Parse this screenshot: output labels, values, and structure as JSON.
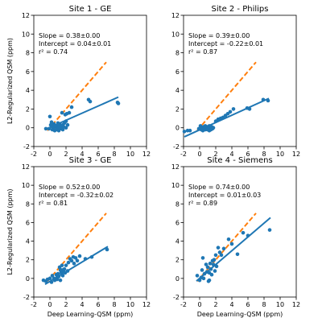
{
  "figure": {
    "xlabel": "Deep Learning-QSM (ppm)",
    "ylabel": "L2-Regularized QSM (ppm)"
  },
  "colors": {
    "points": "#1f77b4",
    "fit_line": "#1f77b4",
    "identity_line": "#ff7f0e"
  },
  "chart_data": [
    {
      "type": "scatter",
      "title": "Site 1 - GE",
      "xlabel": "",
      "ylabel": "L2-Regularized QSM (ppm)",
      "xlim": [
        -2,
        12
      ],
      "ylim": [
        -2,
        12
      ],
      "xticks": [
        -2,
        0,
        2,
        4,
        6,
        8,
        10,
        12
      ],
      "yticks": [
        -2,
        0,
        2,
        4,
        6,
        8,
        10,
        12
      ],
      "annotations": [
        "Slope = 0.38±0.00",
        "Intercept = 0.04±0.01",
        "r² = 0.74"
      ],
      "fit": {
        "slope": 0.38,
        "intercept": 0.04,
        "x_range": [
          -0.4,
          8.5
        ]
      },
      "identity": {
        "x_range": [
          -0.3,
          7
        ]
      },
      "points": [
        [
          -0.5,
          -0.1
        ],
        [
          -0.1,
          -0.1
        ],
        [
          0.1,
          0.3
        ],
        [
          0.2,
          0.6
        ],
        [
          0.3,
          -0.2
        ],
        [
          0.4,
          0.0
        ],
        [
          0.5,
          0.4
        ],
        [
          0.6,
          -0.3
        ],
        [
          0.7,
          0.1
        ],
        [
          0.8,
          -0.2
        ],
        [
          0.9,
          0.2
        ],
        [
          1.0,
          -0.1
        ],
        [
          1.0,
          0.5
        ],
        [
          1.1,
          -0.3
        ],
        [
          1.2,
          0.1
        ],
        [
          1.3,
          0.3
        ],
        [
          1.3,
          -0.1
        ],
        [
          1.4,
          0.0
        ],
        [
          1.5,
          1.6
        ],
        [
          1.5,
          0.2
        ],
        [
          1.6,
          -0.2
        ],
        [
          1.7,
          0.1
        ],
        [
          1.8,
          0.5
        ],
        [
          1.9,
          1.4
        ],
        [
          2.0,
          0.0
        ],
        [
          2.0,
          0.7
        ],
        [
          2.1,
          1.5
        ],
        [
          2.2,
          0.3
        ],
        [
          2.4,
          1.6
        ],
        [
          2.7,
          2.2
        ],
        [
          0.0,
          1.2
        ],
        [
          0.3,
          0.1
        ],
        [
          0.8,
          0.2
        ],
        [
          1.1,
          0.0
        ],
        [
          0.6,
          0.2
        ],
        [
          1.6,
          0.3
        ],
        [
          4.8,
          3.0
        ],
        [
          5.0,
          2.8
        ],
        [
          8.4,
          2.7
        ],
        [
          8.5,
          2.6
        ]
      ]
    },
    {
      "type": "scatter",
      "title": "Site 2 - Philips",
      "xlabel": "",
      "ylabel": "",
      "xlim": [
        -2,
        12
      ],
      "ylim": [
        -2,
        12
      ],
      "xticks": [
        -2,
        0,
        2,
        4,
        6,
        8,
        10,
        12
      ],
      "yticks": [
        -2,
        0,
        2,
        4,
        6,
        8,
        10,
        12
      ],
      "annotations": [
        "Slope = 0.39±0.00",
        "Intercept = -0.22±0.01",
        "r² = 0.87"
      ],
      "fit": {
        "slope": 0.39,
        "intercept": -0.22,
        "x_range": [
          -1.9,
          8.6
        ]
      },
      "identity": {
        "x_range": [
          -0.3,
          7
        ]
      },
      "points": [
        [
          -1.9,
          -0.4
        ],
        [
          -1.5,
          -0.3
        ],
        [
          -1.2,
          -0.3
        ],
        [
          -0.1,
          -0.1
        ],
        [
          0.1,
          0.2
        ],
        [
          0.3,
          0.0
        ],
        [
          0.4,
          -0.3
        ],
        [
          0.5,
          0.1
        ],
        [
          0.6,
          -0.1
        ],
        [
          0.7,
          -0.2
        ],
        [
          0.8,
          0.0
        ],
        [
          0.9,
          0.1
        ],
        [
          1.0,
          -0.2
        ],
        [
          1.1,
          -0.1
        ],
        [
          1.2,
          0.2
        ],
        [
          1.3,
          0.0
        ],
        [
          1.4,
          -0.2
        ],
        [
          1.5,
          0.1
        ],
        [
          1.6,
          -0.1
        ],
        [
          1.7,
          0.0
        ],
        [
          0.2,
          -0.2
        ],
        [
          0.7,
          0.2
        ],
        [
          1.2,
          -0.3
        ],
        [
          2.0,
          0.7
        ],
        [
          2.3,
          0.9
        ],
        [
          2.6,
          1.0
        ],
        [
          2.9,
          1.1
        ],
        [
          3.2,
          1.3
        ],
        [
          3.5,
          1.5
        ],
        [
          3.8,
          1.7
        ],
        [
          4.2,
          2.0
        ],
        [
          5.9,
          2.1
        ],
        [
          6.2,
          2.0
        ],
        [
          7.9,
          3.0
        ],
        [
          8.5,
          2.9
        ]
      ]
    },
    {
      "type": "scatter",
      "title": "Site 3 - GE",
      "xlabel": "Deep Learning-QSM (ppm)",
      "ylabel": "L2-Regularized QSM (ppm)",
      "xlim": [
        -2,
        12
      ],
      "ylim": [
        -2,
        12
      ],
      "xticks": [
        -2,
        0,
        2,
        4,
        6,
        8,
        10,
        12
      ],
      "yticks": [
        -2,
        0,
        2,
        4,
        6,
        8,
        10,
        12
      ],
      "annotations": [
        "Slope = 0.52±0.00",
        "Intercept = -0.32±0.02",
        "r² = 0.81"
      ],
      "fit": {
        "slope": 0.52,
        "intercept": -0.32,
        "x_range": [
          -0.6,
          7.2
        ]
      },
      "identity": {
        "x_range": [
          -0.3,
          7
        ]
      },
      "points": [
        [
          -0.8,
          -0.2
        ],
        [
          -0.5,
          -0.3
        ],
        [
          -0.3,
          -0.1
        ],
        [
          0.0,
          0.0
        ],
        [
          0.2,
          -0.4
        ],
        [
          0.3,
          0.3
        ],
        [
          0.5,
          0.0
        ],
        [
          0.6,
          -0.2
        ],
        [
          0.8,
          0.4
        ],
        [
          0.9,
          -0.1
        ],
        [
          1.0,
          0.5
        ],
        [
          1.1,
          0.2
        ],
        [
          1.2,
          1.2
        ],
        [
          1.3,
          0.9
        ],
        [
          1.4,
          0.6
        ],
        [
          1.5,
          1.4
        ],
        [
          1.6,
          0.3
        ],
        [
          1.7,
          0.7
        ],
        [
          1.8,
          1.0
        ],
        [
          1.9,
          0.6
        ],
        [
          2.0,
          1.4
        ],
        [
          2.2,
          0.8
        ],
        [
          2.3,
          1.7
        ],
        [
          2.5,
          2.1
        ],
        [
          2.7,
          1.9
        ],
        [
          2.9,
          2.3
        ],
        [
          3.0,
          1.6
        ],
        [
          3.2,
          2.2
        ],
        [
          3.4,
          1.9
        ],
        [
          3.7,
          2.4
        ],
        [
          1.3,
          -0.2
        ],
        [
          0.9,
          0.1
        ],
        [
          1.5,
          0.9
        ],
        [
          4.4,
          2.1
        ],
        [
          5.2,
          2.3
        ],
        [
          7.1,
          3.1
        ]
      ]
    },
    {
      "type": "scatter",
      "title": "Site 4 - Siemens",
      "xlabel": "Deep Learning-QSM (ppm)",
      "ylabel": "",
      "xlim": [
        -2,
        12
      ],
      "ylim": [
        -2,
        12
      ],
      "xticks": [
        -2,
        0,
        2,
        4,
        6,
        8,
        10,
        12
      ],
      "yticks": [
        -2,
        0,
        2,
        4,
        6,
        8,
        10,
        12
      ],
      "annotations": [
        "Slope = 0.74±0.00",
        "Intercept = 0.01±0.03",
        "r² = 0.89"
      ],
      "fit": {
        "slope": 0.74,
        "intercept": 0.01,
        "x_range": [
          -0.4,
          8.8
        ]
      },
      "identity": {
        "x_range": [
          -0.3,
          7
        ]
      },
      "points": [
        [
          -0.3,
          0.3
        ],
        [
          0.0,
          -0.2
        ],
        [
          0.2,
          0.1
        ],
        [
          0.3,
          0.9
        ],
        [
          0.4,
          2.2
        ],
        [
          0.5,
          0.0
        ],
        [
          0.6,
          0.5
        ],
        [
          0.8,
          1.5
        ],
        [
          0.9,
          0.7
        ],
        [
          1.0,
          1.2
        ],
        [
          1.1,
          -0.3
        ],
        [
          1.2,
          0.6
        ],
        [
          1.3,
          1.6
        ],
        [
          1.4,
          1.0
        ],
        [
          1.5,
          0.4
        ],
        [
          1.6,
          1.9
        ],
        [
          1.7,
          1.5
        ],
        [
          1.8,
          2.0
        ],
        [
          2.0,
          2.5
        ],
        [
          2.1,
          1.3
        ],
        [
          2.3,
          3.3
        ],
        [
          2.5,
          2.8
        ],
        [
          2.7,
          2.5
        ],
        [
          3.0,
          3.2
        ],
        [
          3.6,
          4.2
        ],
        [
          4.0,
          3.7
        ],
        [
          4.7,
          2.6
        ],
        [
          5.4,
          4.9
        ],
        [
          6.0,
          4.6
        ],
        [
          8.7,
          5.2
        ],
        [
          1.2,
          -0.2
        ],
        [
          1.9,
          0.8
        ]
      ]
    }
  ]
}
